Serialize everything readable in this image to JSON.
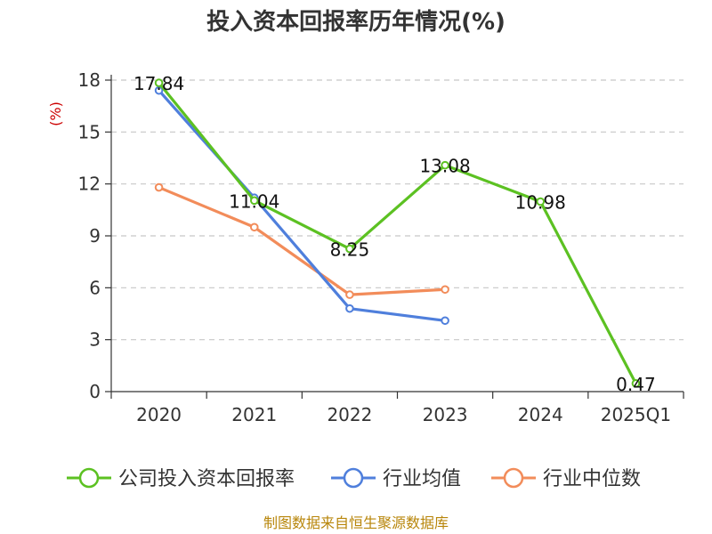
{
  "chart_data": {
    "type": "line",
    "title": "投入资本回报率历年情况(%)",
    "ylabel": "(%)",
    "xlabel": "",
    "categories": [
      "2020",
      "2021",
      "2022",
      "2023",
      "2024",
      "2025Q1"
    ],
    "ylim": [
      0,
      18
    ],
    "yticks": [
      0,
      3,
      6,
      9,
      12,
      15,
      18
    ],
    "grid": true,
    "legend_position": "bottom",
    "series": [
      {
        "name": "公司投入资本回报率",
        "color": "#5cc122",
        "values": [
          17.84,
          11.04,
          8.25,
          13.08,
          10.98,
          0.47
        ],
        "data_labels": [
          "17.84",
          "11.04",
          "8.25",
          "13.08",
          "10.98",
          "0.47"
        ]
      },
      {
        "name": "行业均值",
        "color": "#4f7fdc",
        "values": [
          17.4,
          11.2,
          4.8,
          4.1,
          null,
          null
        ]
      },
      {
        "name": "行业中位数",
        "color": "#f28c5a",
        "values": [
          11.8,
          9.5,
          5.6,
          5.9,
          null,
          null
        ]
      }
    ]
  },
  "source_text": "制图数据来自恒生聚源数据库"
}
